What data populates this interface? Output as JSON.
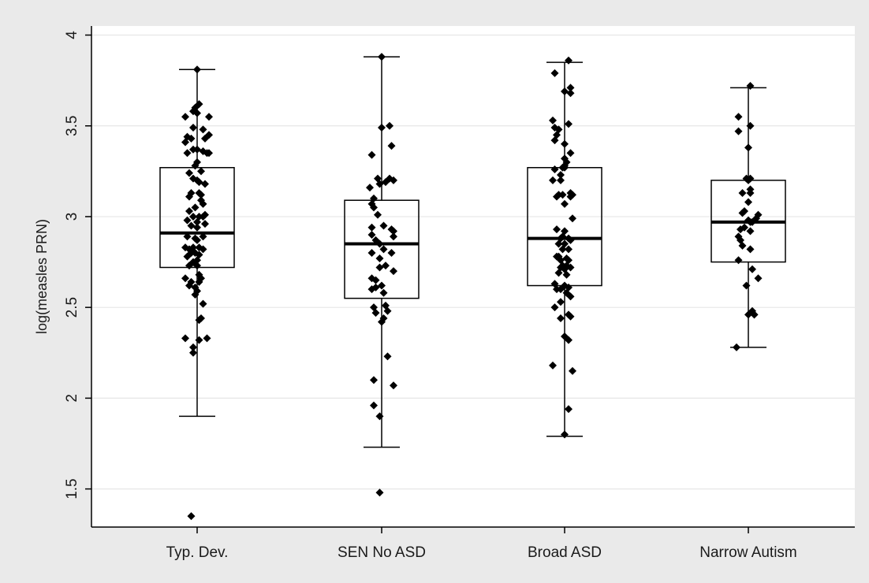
{
  "chart_data": {
    "type": "box",
    "title": "",
    "xlabel": "",
    "ylabel": "log(measles PRN)",
    "ylim": [
      1.29,
      4.05
    ],
    "yticks": [
      1.5,
      2,
      2.5,
      3,
      3.5,
      4
    ],
    "ytick_labels": [
      "1.5",
      "2",
      "2.5",
      "3",
      "3.5",
      "4"
    ],
    "grid": true,
    "legend": "none",
    "colors": {
      "page_background": "#eaeaea",
      "plot_background": "#ffffff",
      "grid": "#e6e6e6",
      "marks": "#000000"
    },
    "categories": [
      "Typ. Dev.",
      "SEN No ASD",
      "Broad ASD",
      "Narrow Autism"
    ],
    "boxes": [
      {
        "category": "Typ. Dev.",
        "whisker_low": 1.9,
        "q1": 2.72,
        "median": 2.91,
        "q3": 3.27,
        "whisker_high": 3.81
      },
      {
        "category": "SEN No ASD",
        "whisker_low": 1.73,
        "q1": 2.55,
        "median": 2.85,
        "q3": 3.09,
        "whisker_high": 3.88
      },
      {
        "category": "Broad ASD",
        "whisker_low": 1.79,
        "q1": 2.62,
        "median": 2.88,
        "q3": 3.27,
        "whisker_high": 3.85
      },
      {
        "category": "Narrow Autism",
        "whisker_low": 2.28,
        "q1": 2.75,
        "median": 2.97,
        "q3": 3.2,
        "whisker_high": 3.71
      }
    ],
    "points": [
      [
        [
          0.0,
          3.81
        ],
        [
          0.01,
          3.62
        ],
        [
          -0.01,
          3.6
        ],
        [
          0.0,
          3.57
        ],
        [
          -0.02,
          3.58
        ],
        [
          -0.06,
          3.55
        ],
        [
          0.06,
          3.55
        ],
        [
          -0.02,
          3.49
        ],
        [
          0.03,
          3.48
        ],
        [
          0.06,
          3.45
        ],
        [
          -0.05,
          3.44
        ],
        [
          -0.03,
          3.43
        ],
        [
          0.04,
          3.43
        ],
        [
          -0.06,
          3.41
        ],
        [
          -0.02,
          3.37
        ],
        [
          0.0,
          3.37
        ],
        [
          0.03,
          3.36
        ],
        [
          -0.05,
          3.35
        ],
        [
          0.05,
          3.35
        ],
        [
          0.06,
          3.35
        ],
        [
          0.0,
          3.3
        ],
        [
          -0.01,
          3.28
        ],
        [
          0.02,
          3.25
        ],
        [
          -0.04,
          3.24
        ],
        [
          -0.02,
          3.21
        ],
        [
          0.0,
          3.2
        ],
        [
          0.01,
          3.19
        ],
        [
          0.04,
          3.18
        ],
        [
          -0.03,
          3.13
        ],
        [
          0.01,
          3.13
        ],
        [
          0.02,
          3.12
        ],
        [
          -0.04,
          3.11
        ],
        [
          0.02,
          3.09
        ],
        [
          0.03,
          3.07
        ],
        [
          -0.01,
          3.05
        ],
        [
          -0.04,
          3.03
        ],
        [
          0.04,
          3.01
        ],
        [
          -0.02,
          3.0
        ],
        [
          0.01,
          3.0
        ],
        [
          0.03,
          3.0
        ],
        [
          -0.05,
          2.98
        ],
        [
          0.0,
          2.97
        ],
        [
          0.04,
          2.96
        ],
        [
          -0.03,
          2.95
        ],
        [
          0.0,
          2.94
        ],
        [
          -0.05,
          2.89
        ],
        [
          0.03,
          2.89
        ],
        [
          -0.01,
          2.88
        ],
        [
          0.0,
          2.87
        ],
        [
          -0.06,
          2.83
        ],
        [
          -0.02,
          2.83
        ],
        [
          0.01,
          2.83
        ],
        [
          -0.04,
          2.82
        ],
        [
          0.03,
          2.82
        ],
        [
          -0.03,
          2.8
        ],
        [
          -0.01,
          2.8
        ],
        [
          0.01,
          2.79
        ],
        [
          -0.05,
          2.78
        ],
        [
          0.0,
          2.76
        ],
        [
          -0.02,
          2.75
        ],
        [
          0.0,
          2.73
        ],
        [
          -0.04,
          2.73
        ],
        [
          0.01,
          2.68
        ],
        [
          -0.06,
          2.66
        ],
        [
          0.02,
          2.66
        ],
        [
          -0.03,
          2.64
        ],
        [
          0.01,
          2.64
        ],
        [
          -0.04,
          2.62
        ],
        [
          -0.01,
          2.61
        ],
        [
          0.0,
          2.59
        ],
        [
          -0.01,
          2.57
        ],
        [
          0.03,
          2.52
        ],
        [
          0.02,
          2.44
        ],
        [
          0.01,
          2.43
        ],
        [
          -0.06,
          2.33
        ],
        [
          0.01,
          2.32
        ],
        [
          0.05,
          2.33
        ],
        [
          -0.02,
          2.28
        ],
        [
          -0.02,
          2.25
        ],
        [
          -0.03,
          1.35
        ]
      ],
      [
        [
          0.0,
          3.88
        ],
        [
          0.0,
          3.49
        ],
        [
          0.04,
          3.5
        ],
        [
          0.05,
          3.39
        ],
        [
          -0.05,
          3.34
        ],
        [
          0.04,
          3.21
        ],
        [
          -0.02,
          3.21
        ],
        [
          0.06,
          3.2
        ],
        [
          0.02,
          3.19
        ],
        [
          -0.01,
          3.18
        ],
        [
          -0.06,
          3.16
        ],
        [
          -0.04,
          3.1
        ],
        [
          -0.05,
          3.07
        ],
        [
          -0.04,
          3.05
        ],
        [
          -0.02,
          3.01
        ],
        [
          0.01,
          2.95
        ],
        [
          -0.05,
          2.94
        ],
        [
          0.05,
          2.93
        ],
        [
          0.06,
          2.92
        ],
        [
          0.06,
          2.89
        ],
        [
          -0.05,
          2.9
        ],
        [
          -0.03,
          2.87
        ],
        [
          -0.01,
          2.85
        ],
        [
          0.01,
          2.82
        ],
        [
          0.05,
          2.8
        ],
        [
          -0.05,
          2.8
        ],
        [
          -0.01,
          2.77
        ],
        [
          0.02,
          2.73
        ],
        [
          -0.01,
          2.72
        ],
        [
          0.06,
          2.7
        ],
        [
          -0.05,
          2.66
        ],
        [
          -0.03,
          2.65
        ],
        [
          0.0,
          2.62
        ],
        [
          -0.03,
          2.61
        ],
        [
          -0.05,
          2.6
        ],
        [
          0.01,
          2.58
        ],
        [
          0.02,
          2.51
        ],
        [
          -0.04,
          2.5
        ],
        [
          -0.03,
          2.47
        ],
        [
          0.03,
          2.48
        ],
        [
          0.01,
          2.44
        ],
        [
          0.0,
          2.42
        ],
        [
          0.03,
          2.23
        ],
        [
          0.06,
          2.07
        ],
        [
          -0.04,
          2.1
        ],
        [
          -0.04,
          1.96
        ],
        [
          -0.01,
          1.9
        ],
        [
          -0.01,
          1.48
        ]
      ],
      [
        [
          0.02,
          3.86
        ],
        [
          -0.05,
          3.79
        ],
        [
          0.03,
          3.71
        ],
        [
          0.03,
          3.68
        ],
        [
          0.0,
          3.69
        ],
        [
          -0.06,
          3.53
        ],
        [
          0.02,
          3.51
        ],
        [
          -0.05,
          3.49
        ],
        [
          -0.03,
          3.48
        ],
        [
          -0.04,
          3.45
        ],
        [
          -0.05,
          3.42
        ],
        [
          0.0,
          3.4
        ],
        [
          0.03,
          3.35
        ],
        [
          0.0,
          3.32
        ],
        [
          0.01,
          3.3
        ],
        [
          0.0,
          3.28
        ],
        [
          0.0,
          3.27
        ],
        [
          -0.01,
          3.27
        ],
        [
          -0.02,
          3.23
        ],
        [
          -0.05,
          3.26
        ],
        [
          -0.06,
          3.2
        ],
        [
          -0.02,
          3.2
        ],
        [
          0.03,
          3.13
        ],
        [
          0.04,
          3.12
        ],
        [
          0.03,
          3.11
        ],
        [
          -0.01,
          3.12
        ],
        [
          -0.04,
          3.11
        ],
        [
          -0.03,
          3.12
        ],
        [
          0.0,
          3.07
        ],
        [
          0.04,
          2.99
        ],
        [
          -0.04,
          2.93
        ],
        [
          0.0,
          2.92
        ],
        [
          -0.01,
          2.89
        ],
        [
          0.02,
          2.88
        ],
        [
          -0.02,
          2.88
        ],
        [
          0.03,
          2.87
        ],
        [
          -0.03,
          2.85
        ],
        [
          0.0,
          2.85
        ],
        [
          -0.01,
          2.82
        ],
        [
          0.02,
          2.82
        ],
        [
          -0.04,
          2.78
        ],
        [
          -0.03,
          2.78
        ],
        [
          0.01,
          2.77
        ],
        [
          -0.02,
          2.76
        ],
        [
          0.02,
          2.76
        ],
        [
          -0.01,
          2.73
        ],
        [
          0.01,
          2.73
        ],
        [
          -0.02,
          2.72
        ],
        [
          0.03,
          2.72
        ],
        [
          0.0,
          2.71
        ],
        [
          -0.03,
          2.69
        ],
        [
          0.01,
          2.68
        ],
        [
          -0.05,
          2.63
        ],
        [
          0.0,
          2.62
        ],
        [
          0.02,
          2.61
        ],
        [
          -0.04,
          2.6
        ],
        [
          -0.02,
          2.6
        ],
        [
          0.01,
          2.58
        ],
        [
          0.03,
          2.56
        ],
        [
          -0.02,
          2.53
        ],
        [
          -0.05,
          2.5
        ],
        [
          0.02,
          2.46
        ],
        [
          -0.02,
          2.44
        ],
        [
          0.03,
          2.45
        ],
        [
          0.0,
          2.34
        ],
        [
          0.02,
          2.32
        ],
        [
          -0.06,
          2.18
        ],
        [
          0.04,
          2.15
        ],
        [
          0.02,
          1.94
        ],
        [
          0.0,
          1.8
        ]
      ],
      [
        [
          0.01,
          3.72
        ],
        [
          -0.05,
          3.55
        ],
        [
          0.01,
          3.5
        ],
        [
          -0.05,
          3.47
        ],
        [
          0.0,
          3.38
        ],
        [
          -0.01,
          3.21
        ],
        [
          0.0,
          3.2
        ],
        [
          0.01,
          3.21
        ],
        [
          0.01,
          3.15
        ],
        [
          -0.03,
          3.13
        ],
        [
          0.01,
          3.13
        ],
        [
          0.0,
          3.08
        ],
        [
          -0.02,
          3.03
        ],
        [
          0.05,
          3.01
        ],
        [
          -0.03,
          3.02
        ],
        [
          0.04,
          2.99
        ],
        [
          0.0,
          2.98
        ],
        [
          0.01,
          2.97
        ],
        [
          0.02,
          2.97
        ],
        [
          -0.02,
          2.94
        ],
        [
          -0.04,
          2.93
        ],
        [
          0.01,
          2.92
        ],
        [
          -0.05,
          2.89
        ],
        [
          -0.04,
          2.87
        ],
        [
          -0.03,
          2.84
        ],
        [
          0.01,
          2.82
        ],
        [
          -0.05,
          2.76
        ],
        [
          0.02,
          2.71
        ],
        [
          0.05,
          2.66
        ],
        [
          -0.01,
          2.62
        ],
        [
          0.02,
          2.48
        ],
        [
          0.03,
          2.46
        ],
        [
          0.03,
          2.46
        ],
        [
          0.0,
          2.46
        ],
        [
          -0.06,
          2.28
        ]
      ]
    ]
  }
}
